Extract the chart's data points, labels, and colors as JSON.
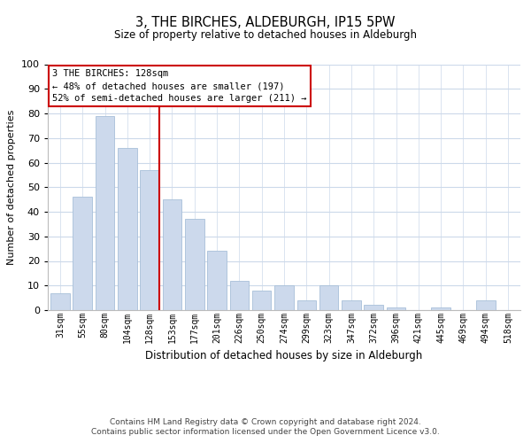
{
  "title": "3, THE BIRCHES, ALDEBURGH, IP15 5PW",
  "subtitle": "Size of property relative to detached houses in Aldeburgh",
  "xlabel": "Distribution of detached houses by size in Aldeburgh",
  "ylabel": "Number of detached properties",
  "bar_labels": [
    "31sqm",
    "55sqm",
    "80sqm",
    "104sqm",
    "128sqm",
    "153sqm",
    "177sqm",
    "201sqm",
    "226sqm",
    "250sqm",
    "274sqm",
    "299sqm",
    "323sqm",
    "347sqm",
    "372sqm",
    "396sqm",
    "421sqm",
    "445sqm",
    "469sqm",
    "494sqm",
    "518sqm"
  ],
  "bar_values": [
    7,
    46,
    79,
    66,
    57,
    45,
    37,
    24,
    12,
    8,
    10,
    4,
    10,
    4,
    2,
    1,
    0,
    1,
    0,
    4,
    0
  ],
  "bar_color": "#ccd9ec",
  "bar_edge_color": "#a8bfd9",
  "marker_index": 4,
  "marker_color": "#cc0000",
  "ylim": [
    0,
    100
  ],
  "yticks": [
    0,
    10,
    20,
    30,
    40,
    50,
    60,
    70,
    80,
    90,
    100
  ],
  "annotation_title": "3 THE BIRCHES: 128sqm",
  "annotation_line1": "← 48% of detached houses are smaller (197)",
  "annotation_line2": "52% of semi-detached houses are larger (211) →",
  "footnote1": "Contains HM Land Registry data © Crown copyright and database right 2024.",
  "footnote2": "Contains public sector information licensed under the Open Government Licence v3.0.",
  "bg_color": "#ffffff",
  "grid_color": "#ccd9ea"
}
